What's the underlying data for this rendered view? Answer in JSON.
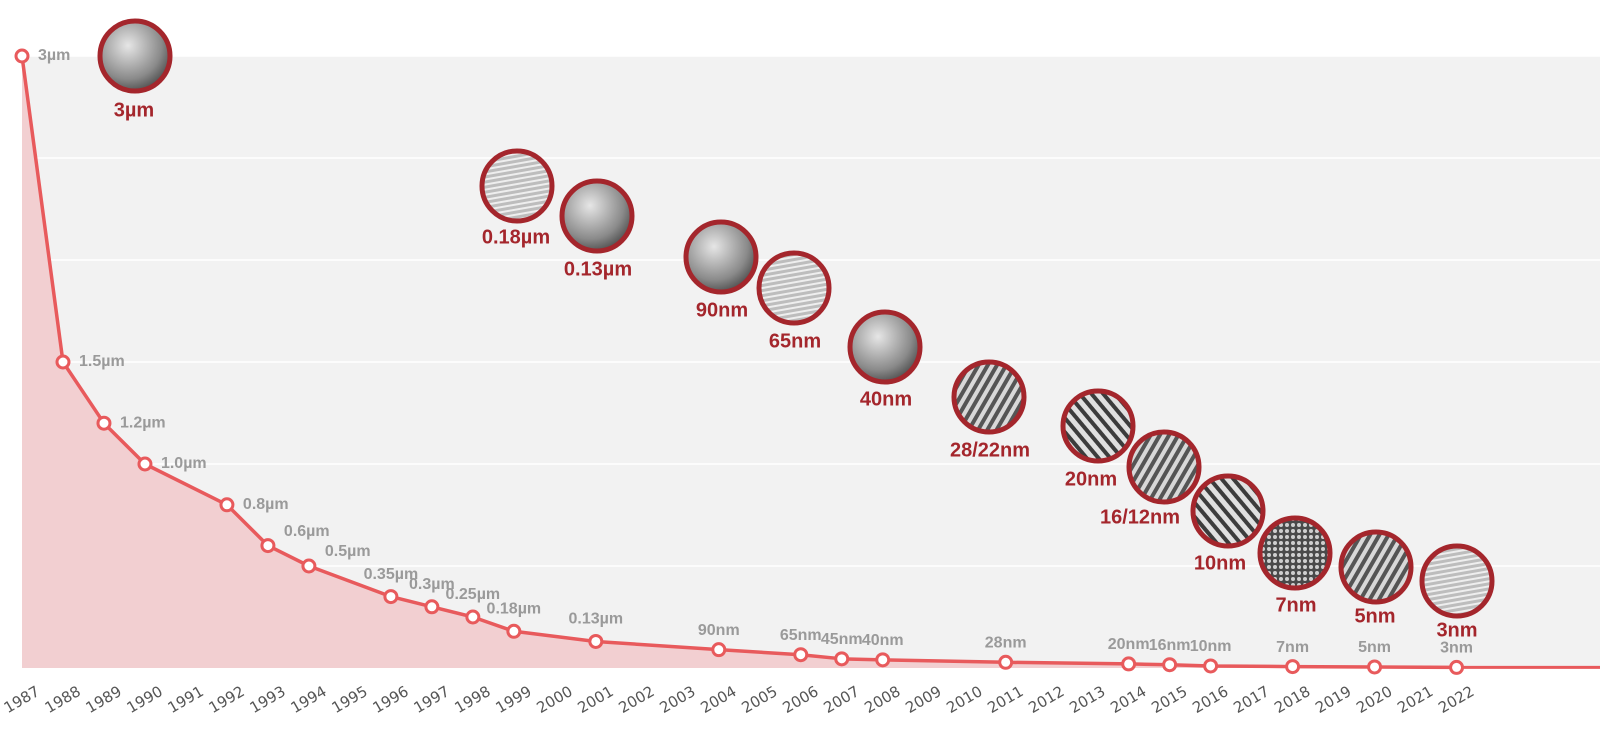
{
  "chart_data": {
    "type": "line",
    "x": [
      1987,
      1988,
      1989,
      1990,
      1992,
      1993,
      1994,
      1996,
      1997,
      1998,
      1999,
      2001,
      2004,
      2006,
      2007,
      2008,
      2011,
      2014,
      2015,
      2016,
      2018,
      2020,
      2022
    ],
    "series": [
      {
        "color": "#e85a5c",
        "values": [
          3,
          1.5,
          1.2,
          1.0,
          0.8,
          0.6,
          0.5,
          0.35,
          0.3,
          0.25,
          0.18,
          0.13,
          0.09,
          0.065,
          0.045,
          0.04,
          0.028,
          0.02,
          0.016,
          0.01,
          0.007,
          0.005,
          0.003
        ],
        "value_labels": [
          "3µm",
          "1.5µm",
          "1.2µm",
          "1.0µm",
          "0.8µm",
          "0.6µm",
          "0.5µm",
          "0.35µm",
          "0.3µm",
          "0.25µm",
          "0.18µm",
          "0.13µm",
          "90nm",
          "65nm",
          "45nm",
          "40nm",
          "28nm",
          "20nm",
          "16nm",
          "10nm",
          "7nm",
          "5nm",
          "3nm"
        ]
      }
    ],
    "area_color": "#f2cfd1",
    "xlim": [
      1987,
      2025.5
    ],
    "xticks": [
      1987,
      1988,
      1989,
      1990,
      1991,
      1992,
      1993,
      1994,
      1995,
      1996,
      1997,
      1998,
      1999,
      2000,
      2001,
      2002,
      2003,
      2004,
      2005,
      2006,
      2007,
      2008,
      2009,
      2010,
      2011,
      2012,
      2013,
      2014,
      2015,
      2016,
      2017,
      2018,
      2019,
      2020,
      2021,
      2022
    ],
    "ylim": [
      0,
      3
    ],
    "yticks": [
      0,
      0.5,
      1,
      1.5,
      2,
      2.5,
      3
    ],
    "grid": true,
    "annotations": [
      {
        "label": "3µm"
      },
      {
        "label": "0.18µm"
      },
      {
        "label": "0.13µm"
      },
      {
        "label": "90nm"
      },
      {
        "label": "65nm"
      },
      {
        "label": "40nm"
      },
      {
        "label": "28/22nm"
      },
      {
        "label": "20nm"
      },
      {
        "label": "16/12nm"
      },
      {
        "label": "10nm"
      },
      {
        "label": "7nm"
      },
      {
        "label": "5nm"
      },
      {
        "label": "3nm"
      }
    ]
  }
}
